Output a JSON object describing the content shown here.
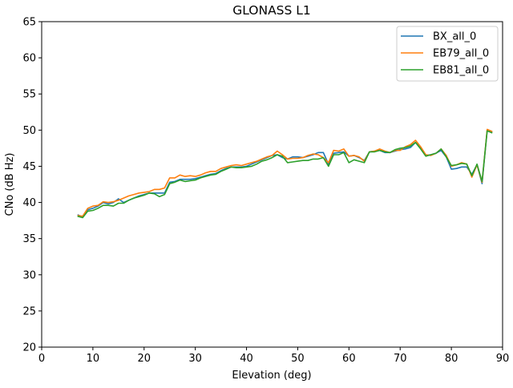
{
  "chart_data": {
    "type": "line",
    "title": "GLONASS L1",
    "xlabel": "Elevation (deg)",
    "ylabel": "CNo (dB Hz)",
    "xlim": [
      0,
      90
    ],
    "ylim": [
      20,
      65
    ],
    "xticks": [
      0,
      10,
      20,
      30,
      40,
      50,
      60,
      70,
      80,
      90
    ],
    "yticks": [
      20,
      25,
      30,
      35,
      40,
      45,
      50,
      55,
      60,
      65
    ],
    "grid": false,
    "legend_position": "top-right",
    "x": [
      7,
      8,
      9,
      10,
      11,
      12,
      13,
      14,
      15,
      16,
      17,
      18,
      19,
      20,
      21,
      22,
      23,
      24,
      25,
      26,
      27,
      28,
      29,
      30,
      31,
      32,
      33,
      34,
      35,
      36,
      37,
      38,
      39,
      40,
      41,
      42,
      43,
      44,
      45,
      46,
      47,
      48,
      49,
      50,
      51,
      52,
      53,
      54,
      55,
      56,
      57,
      58,
      59,
      60,
      61,
      62,
      63,
      64,
      65,
      66,
      67,
      68,
      69,
      70,
      71,
      72,
      73,
      74,
      75,
      76,
      77,
      78,
      79,
      80,
      81,
      82,
      83,
      84,
      85,
      86,
      87,
      88
    ],
    "series": [
      {
        "name": "BX_all_0",
        "color": "#1f77b4",
        "values": [
          38.3,
          38.0,
          39.0,
          39.2,
          39.5,
          40.0,
          39.8,
          40.0,
          40.5,
          40.0,
          40.3,
          40.6,
          40.9,
          41.1,
          41.3,
          41.3,
          41.3,
          41.3,
          42.8,
          42.9,
          43.2,
          43.2,
          43.2,
          43.3,
          43.5,
          43.7,
          43.9,
          44.0,
          44.4,
          44.7,
          44.9,
          44.9,
          44.9,
          45.0,
          45.3,
          45.6,
          45.9,
          46.2,
          46.5,
          46.6,
          46.2,
          46.0,
          46.3,
          46.3,
          46.2,
          46.4,
          46.6,
          46.9,
          46.9,
          45.3,
          46.8,
          46.9,
          47.0,
          46.4,
          46.5,
          46.2,
          45.8,
          47.0,
          47.1,
          47.2,
          46.9,
          46.9,
          47.1,
          47.3,
          47.4,
          47.6,
          48.3,
          47.5,
          46.5,
          46.6,
          46.8,
          47.2,
          46.3,
          44.6,
          44.7,
          44.9,
          44.9,
          43.9,
          45.2,
          42.6,
          50.0,
          49.7
        ]
      },
      {
        "name": "EB79_all_0",
        "color": "#ff7f0e",
        "values": [
          38.2,
          38.1,
          39.2,
          39.5,
          39.6,
          40.1,
          40.0,
          40.1,
          40.3,
          40.6,
          40.9,
          41.1,
          41.3,
          41.4,
          41.5,
          41.8,
          41.8,
          42.0,
          43.4,
          43.4,
          43.8,
          43.6,
          43.7,
          43.6,
          43.8,
          44.1,
          44.3,
          44.3,
          44.7,
          44.9,
          45.1,
          45.2,
          45.1,
          45.3,
          45.5,
          45.7,
          46.0,
          46.3,
          46.5,
          47.1,
          46.6,
          46.0,
          46.1,
          46.1,
          46.2,
          46.5,
          46.7,
          46.6,
          46.2,
          45.5,
          47.2,
          47.1,
          47.4,
          46.4,
          46.5,
          46.3,
          45.7,
          47.0,
          47.1,
          47.4,
          47.1,
          46.9,
          47.2,
          47.2,
          47.7,
          48.0,
          48.6,
          47.7,
          46.6,
          46.5,
          46.8,
          47.4,
          46.5,
          45.0,
          45.2,
          45.5,
          45.3,
          43.5,
          45.2,
          42.8,
          50.1,
          49.8
        ]
      },
      {
        "name": "EB81_all_0",
        "color": "#2ca02c",
        "values": [
          38.1,
          37.9,
          38.8,
          38.9,
          39.2,
          39.6,
          39.6,
          39.5,
          39.9,
          39.9,
          40.3,
          40.6,
          40.8,
          41.0,
          41.3,
          41.2,
          40.8,
          41.1,
          42.6,
          42.8,
          43.1,
          42.9,
          43.0,
          43.1,
          43.4,
          43.6,
          43.8,
          43.9,
          44.3,
          44.6,
          44.9,
          44.8,
          44.8,
          44.9,
          45.0,
          45.3,
          45.7,
          45.9,
          46.2,
          46.6,
          46.4,
          45.5,
          45.6,
          45.7,
          45.8,
          45.8,
          46.0,
          46.0,
          46.2,
          45.0,
          46.6,
          46.6,
          46.9,
          45.5,
          45.9,
          45.7,
          45.5,
          47.0,
          47.0,
          47.2,
          47.0,
          46.9,
          47.3,
          47.5,
          47.6,
          47.8,
          48.3,
          47.4,
          46.4,
          46.6,
          46.8,
          47.4,
          46.3,
          45.1,
          45.2,
          45.4,
          45.3,
          43.7,
          45.3,
          42.9,
          49.9,
          49.6
        ]
      }
    ]
  }
}
